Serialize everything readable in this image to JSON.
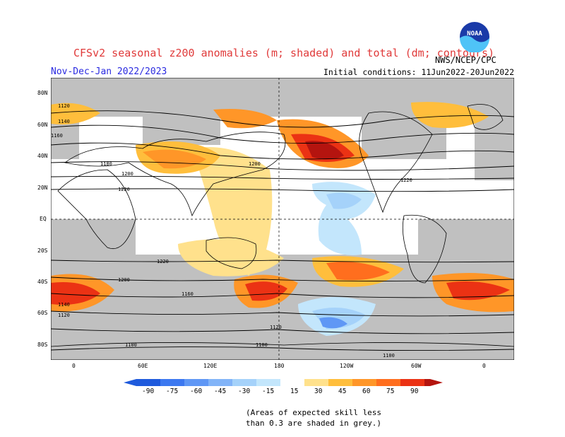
{
  "header": {
    "title": "CFSv2 seasonal z200 anomalies (m; shaded) and total (dm; contours)",
    "period": "Nov-Dec-Jan 2022/2023",
    "initial_conditions": "Initial conditions: 11Jun2022-20Jun2022",
    "agency": "NWS/NCEP/CPC",
    "logo_text": "NOAA"
  },
  "map": {
    "lat_labels": [
      "80N",
      "60N",
      "40N",
      "20N",
      "EQ",
      "20S",
      "40S",
      "60S",
      "80S"
    ],
    "lon_labels": [
      "0",
      "60E",
      "120E",
      "180",
      "120W",
      "60W",
      "0"
    ],
    "contour_labels": [
      "1120",
      "1140",
      "1160",
      "1180",
      "1200",
      "1220",
      "1100"
    ],
    "skill_mask_color": "#c0c0c0",
    "colors": {
      "neg90": "#1e5adc",
      "neg75": "#3c78f0",
      "neg60": "#5f97f5",
      "neg45": "#82b4f8",
      "neg30": "#a5d2fa",
      "neg15": "#c3e6fc",
      "pos15": "#ffe18c",
      "pos30": "#ffbe3c",
      "pos45": "#ff9628",
      "pos60": "#ff6e1e",
      "pos75": "#eb3214",
      "pos90": "#b4140f"
    }
  },
  "colorbar": {
    "labels": [
      "-90",
      "-75",
      "-60",
      "-45",
      "-30",
      "-15",
      "15",
      "30",
      "45",
      "60",
      "75",
      "90"
    ]
  },
  "footnote": {
    "line1": "(Areas of expected skill less",
    "line2": "than 0.3 are shaded in grey.)"
  }
}
